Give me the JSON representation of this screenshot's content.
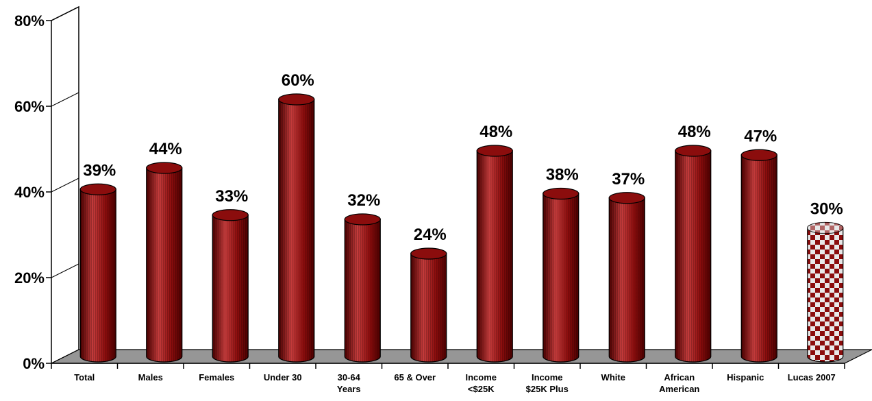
{
  "chart_data": {
    "type": "bar",
    "title": "",
    "xlabel": "",
    "ylabel": "",
    "ylim": [
      0,
      80
    ],
    "y_ticks": [
      "0%",
      "20%",
      "40%",
      "60%",
      "80%"
    ],
    "categories": [
      [
        "Total"
      ],
      [
        "Males"
      ],
      [
        "Females"
      ],
      [
        "Under 30"
      ],
      [
        "30-64",
        "Years"
      ],
      [
        "65 & Over"
      ],
      [
        "Income",
        "<$25K"
      ],
      [
        "Income",
        "$25K Plus"
      ],
      [
        "White"
      ],
      [
        "African",
        "American"
      ],
      [
        "Hispanic"
      ],
      [
        "Lucas 2007"
      ]
    ],
    "values": [
      39,
      44,
      33,
      60,
      32,
      24,
      48,
      38,
      37,
      48,
      47,
      30
    ],
    "labels": [
      "39%",
      "44%",
      "33%",
      "60%",
      "32%",
      "24%",
      "48%",
      "38%",
      "37%",
      "48%",
      "47%",
      "30%"
    ],
    "highlight_index": 11,
    "grid": false,
    "colors": {
      "bar": "#8b0d0d",
      "bar_dark": "#4a0000",
      "bar_light": "#c43c3c",
      "floor": "#969696",
      "highlight_a": "#8b0d0d",
      "highlight_b": "#e8e8e8"
    }
  }
}
